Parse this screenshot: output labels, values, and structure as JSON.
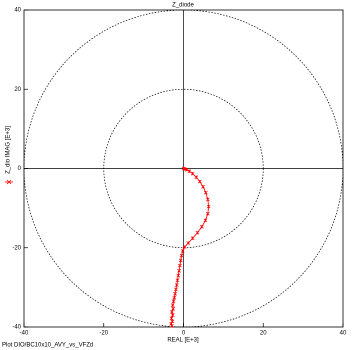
{
  "chart_data": {
    "type": "scatter",
    "title": "Z_diode",
    "x_label": "REAL [E+3]",
    "y_label": "Z_dio  IMAG [E+3]",
    "footer": "Plot DIO/BC10x10_AVY_vs_VFZd",
    "color": "#ff0000",
    "x": [
      0,
      0.3,
      0.8,
      1.5,
      2.3,
      3.2,
      4.1,
      4.9,
      5.6,
      6.1,
      6.3,
      6.1,
      5.5,
      4.6,
      3.5,
      2.3,
      1.2,
      0.3,
      -0.2,
      -0.5,
      -0.7,
      -0.9,
      -1.1,
      -1.3,
      -1.5,
      -1.7,
      -1.9,
      -2.1,
      -2.3,
      -2.5,
      -2.7,
      -2.6,
      -2.9,
      -2.7,
      -3,
      -2.8,
      -3.1,
      -2.9
    ],
    "values": [
      0,
      -0.1,
      -0.3,
      -0.7,
      -1.3,
      -2.2,
      -3.3,
      -4.6,
      -6.1,
      -7.8,
      -9.6,
      -11.4,
      -13.1,
      -14.7,
      -16.2,
      -17.6,
      -18.8,
      -19.8,
      -20.8,
      -22,
      -23.2,
      -24.5,
      -25.8,
      -27,
      -28.2,
      -29.4,
      -30.5,
      -31.6,
      -32.6,
      -33.5,
      -34.5,
      -35.4,
      -36.2,
      -37,
      -37.8,
      -38.6,
      -39.2,
      -39.7
    ],
    "xlim": [
      -40,
      40
    ],
    "ylim": [
      -40,
      40
    ],
    "xticks": [
      -40,
      -20,
      0,
      20,
      40
    ],
    "yticks": [
      -40,
      -20,
      0,
      20,
      40
    ],
    "circles": [
      20,
      40
    ]
  }
}
